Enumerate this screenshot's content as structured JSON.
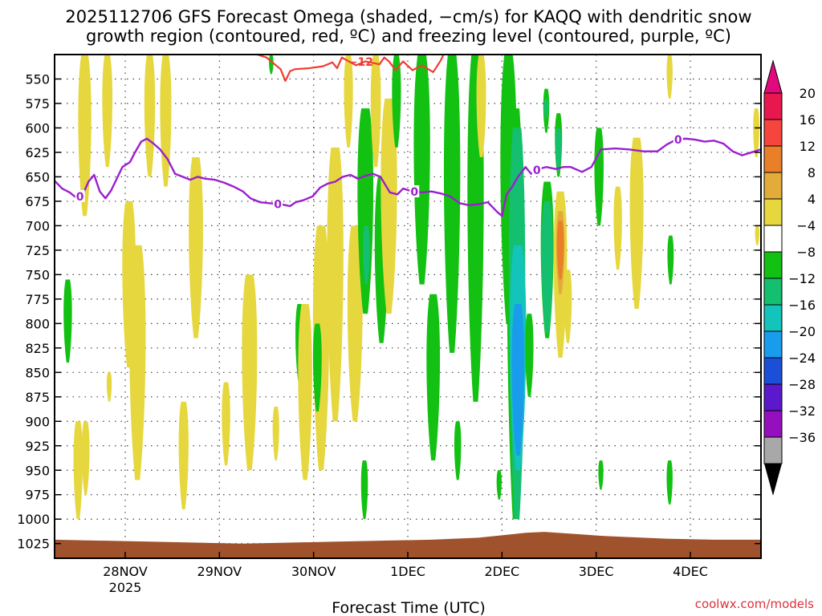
{
  "chart_data": {
    "type": "heatmap",
    "title_line1": "2025112706 GFS Forecast Omega (shaded, −cm/s) for KAQQ with dendritic snow",
    "title_line2": "growth region (contoured, red, ºC) and freezing level (contoured, purple, ºC)",
    "xlabel": "Forecast Time (UTC)",
    "credit": "coolwx.com/models",
    "x_unit": "days since 2025-11-27 06Z",
    "xlim": [
      0,
      7.5
    ],
    "x_ticks": [
      {
        "x": 0.75,
        "label": "28NOV",
        "sub": "2025"
      },
      {
        "x": 1.75,
        "label": "29NOV",
        "sub": ""
      },
      {
        "x": 2.75,
        "label": "30NOV",
        "sub": ""
      },
      {
        "x": 3.75,
        "label": "1DEC",
        "sub": ""
      },
      {
        "x": 4.75,
        "label": "2DEC",
        "sub": ""
      },
      {
        "x": 5.75,
        "label": "3DEC",
        "sub": ""
      },
      {
        "x": 6.75,
        "label": "4DEC",
        "sub": ""
      }
    ],
    "y_unit": "hPa",
    "ylim": [
      1040,
      525
    ],
    "y_ticks": [
      "550",
      "575",
      "600",
      "625",
      "650",
      "675",
      "700",
      "725",
      "750",
      "775",
      "800",
      "825",
      "850",
      "875",
      "900",
      "925",
      "950",
      "975",
      "1000",
      "1025"
    ],
    "colorbar": {
      "labels": [
        "20",
        "16",
        "12",
        "8",
        "4",
        "−4",
        "−8",
        "−12",
        "−16",
        "−20",
        "−24",
        "−28",
        "−32",
        "−36"
      ],
      "colors": [
        "#e8174e",
        "#f5453c",
        "#e97f29",
        "#e3ab3a",
        "#e6d73e",
        "#ffffff",
        "#12c112",
        "#15bf70",
        "#12c4b9",
        "#1a9cec",
        "#1c4fd8",
        "#5b18cc",
        "#950fbf",
        "#a8a8a8"
      ],
      "top_arrow": "#e0097d",
      "bottom_arrow": "#000000"
    },
    "omega_colors": {
      "pos_4_8": "#e6d73e",
      "pos_8_12": "#e3ab3a",
      "pos_12_16": "#e97f29",
      "neg_4_8": "#12c112",
      "neg_8_12": "#15bf70",
      "neg_12_16": "#12c4b9",
      "neg_16_20": "#1a9cec"
    },
    "omega_regions": [
      {
        "c": "pos_4_8",
        "x": 0.25,
        "p0": 1000,
        "p1": 900
      },
      {
        "c": "pos_4_8",
        "x": 0.32,
        "p0": 690,
        "p1": 525
      },
      {
        "c": "neg_4_8",
        "x": 0.14,
        "p0": 840,
        "p1": 755
      },
      {
        "c": "pos_4_8",
        "x": 0.33,
        "p0": 975,
        "p1": 900
      },
      {
        "c": "pos_4_8",
        "x": 0.56,
        "p0": 640,
        "p1": 525
      },
      {
        "c": "pos_4_8",
        "x": 0.58,
        "p0": 880,
        "p1": 850
      },
      {
        "c": "pos_4_8",
        "x": 0.79,
        "p0": 845,
        "p1": 675
      },
      {
        "c": "pos_4_8",
        "x": 0.88,
        "p0": 960,
        "p1": 720
      },
      {
        "c": "pos_4_8",
        "x": 1.01,
        "p0": 650,
        "p1": 525
      },
      {
        "c": "pos_4_8",
        "x": 1.18,
        "p0": 660,
        "p1": 525
      },
      {
        "c": "pos_4_8",
        "x": 1.37,
        "p0": 990,
        "p1": 880
      },
      {
        "c": "pos_4_8",
        "x": 1.5,
        "p0": 815,
        "p1": 630
      },
      {
        "c": "pos_4_8",
        "x": 1.82,
        "p0": 945,
        "p1": 860
      },
      {
        "c": "pos_4_8",
        "x": 2.07,
        "p0": 950,
        "p1": 750
      },
      {
        "c": "pos_4_8",
        "x": 2.35,
        "p0": 940,
        "p1": 885
      },
      {
        "c": "neg_4_8",
        "x": 2.3,
        "p0": 545,
        "p1": 525
      },
      {
        "c": "neg_4_8",
        "x": 2.6,
        "p0": 860,
        "p1": 780
      },
      {
        "c": "pos_4_8",
        "x": 2.66,
        "p0": 960,
        "p1": 780
      },
      {
        "c": "pos_4_8",
        "x": 2.83,
        "p0": 950,
        "p1": 700
      },
      {
        "c": "neg_4_8",
        "x": 2.79,
        "p0": 890,
        "p1": 800
      },
      {
        "c": "pos_4_8",
        "x": 2.98,
        "p0": 900,
        "p1": 620
      },
      {
        "c": "pos_4_8",
        "x": 3.12,
        "p0": 620,
        "p1": 525
      },
      {
        "c": "pos_4_8",
        "x": 3.19,
        "p0": 900,
        "p1": 700
      },
      {
        "c": "neg_4_8",
        "x": 3.29,
        "p0": 1000,
        "p1": 940
      },
      {
        "c": "neg_4_8",
        "x": 3.3,
        "p0": 790,
        "p1": 580
      },
      {
        "c": "neg_8_12",
        "x": 3.31,
        "p0": 760,
        "p1": 700
      },
      {
        "c": "pos_4_8",
        "x": 3.41,
        "p0": 640,
        "p1": 525
      },
      {
        "c": "neg_4_8",
        "x": 3.47,
        "p0": 820,
        "p1": 650
      },
      {
        "c": "pos_4_8",
        "x": 3.55,
        "p0": 790,
        "p1": 570
      },
      {
        "c": "neg_4_8",
        "x": 3.63,
        "p0": 620,
        "p1": 525
      },
      {
        "c": "neg_4_8",
        "x": 3.9,
        "p0": 760,
        "p1": 525
      },
      {
        "c": "neg_4_8",
        "x": 4.02,
        "p0": 940,
        "p1": 770
      },
      {
        "c": "neg_4_8",
        "x": 4.22,
        "p0": 830,
        "p1": 525
      },
      {
        "c": "neg_4_8",
        "x": 4.28,
        "p0": 960,
        "p1": 900
      },
      {
        "c": "neg_4_8",
        "x": 4.47,
        "p0": 880,
        "p1": 525
      },
      {
        "c": "pos_4_8",
        "x": 4.53,
        "p0": 630,
        "p1": 525
      },
      {
        "c": "neg_4_8",
        "x": 4.72,
        "p0": 980,
        "p1": 950
      },
      {
        "c": "neg_4_8",
        "x": 4.82,
        "p0": 800,
        "p1": 525
      },
      {
        "c": "neg_4_8",
        "x": 4.89,
        "p0": 1000,
        "p1": 580
      },
      {
        "c": "neg_8_12",
        "x": 4.91,
        "p0": 1000,
        "p1": 600
      },
      {
        "c": "neg_12_16",
        "x": 4.92,
        "p0": 950,
        "p1": 720
      },
      {
        "c": "neg_16_20",
        "x": 4.92,
        "p0": 935,
        "p1": 780
      },
      {
        "c": "neg_4_8",
        "x": 5.04,
        "p0": 875,
        "p1": 790
      },
      {
        "c": "neg_4_8",
        "x": 5.23,
        "p0": 815,
        "p1": 655
      },
      {
        "c": "neg_8_12",
        "x": 5.23,
        "p0": 810,
        "p1": 675
      },
      {
        "c": "neg_4_8",
        "x": 5.22,
        "p0": 605,
        "p1": 560
      },
      {
        "c": "neg_8_12",
        "x": 5.22,
        "p0": 590,
        "p1": 570
      },
      {
        "c": "neg_4_8",
        "x": 5.35,
        "p0": 650,
        "p1": 585
      },
      {
        "c": "neg_8_12",
        "x": 5.35,
        "p0": 645,
        "p1": 600
      },
      {
        "c": "pos_4_8",
        "x": 5.37,
        "p0": 835,
        "p1": 665
      },
      {
        "c": "pos_8_12",
        "x": 5.37,
        "p0": 770,
        "p1": 685
      },
      {
        "c": "pos_12_16",
        "x": 5.37,
        "p0": 755,
        "p1": 695
      },
      {
        "c": "pos_4_8",
        "x": 5.45,
        "p0": 820,
        "p1": 745
      },
      {
        "c": "neg_4_8",
        "x": 5.78,
        "p0": 700,
        "p1": 600
      },
      {
        "c": "neg_4_8",
        "x": 5.8,
        "p0": 970,
        "p1": 940
      },
      {
        "c": "pos_4_8",
        "x": 5.98,
        "p0": 745,
        "p1": 660
      },
      {
        "c": "pos_4_8",
        "x": 6.18,
        "p0": 785,
        "p1": 610
      },
      {
        "c": "neg_4_8",
        "x": 6.54,
        "p0": 760,
        "p1": 710
      },
      {
        "c": "neg_4_8",
        "x": 6.53,
        "p0": 985,
        "p1": 940
      },
      {
        "c": "pos_4_8",
        "x": 6.53,
        "p0": 570,
        "p1": 525
      },
      {
        "c": "pos_4_8",
        "x": 7.45,
        "p0": 630,
        "p1": 580
      },
      {
        "c": "pos_4_8",
        "x": 7.46,
        "p0": 720,
        "p1": 700
      }
    ],
    "surface": {
      "color": "#a0522d",
      "points": [
        [
          0,
          1021
        ],
        [
          1.0,
          1023
        ],
        [
          1.5,
          1024
        ],
        [
          2.0,
          1025
        ],
        [
          2.5,
          1024
        ],
        [
          3.0,
          1023
        ],
        [
          3.5,
          1022
        ],
        [
          4.0,
          1021
        ],
        [
          4.5,
          1019
        ],
        [
          4.8,
          1016
        ],
        [
          5.0,
          1014
        ],
        [
          5.2,
          1013
        ],
        [
          5.5,
          1015
        ],
        [
          5.8,
          1017
        ],
        [
          6.0,
          1018
        ],
        [
          6.5,
          1020
        ],
        [
          7.0,
          1021
        ],
        [
          7.5,
          1021
        ]
      ]
    },
    "freezing_level": {
      "color": "#9b1fcf",
      "label": "0",
      "label_x": [
        0.27,
        2.37,
        3.82,
        5.12,
        6.62
      ],
      "points": [
        [
          0,
          654
        ],
        [
          0.08,
          662
        ],
        [
          0.16,
          666
        ],
        [
          0.24,
          672
        ],
        [
          0.3,
          668
        ],
        [
          0.36,
          655
        ],
        [
          0.42,
          648
        ],
        [
          0.48,
          665
        ],
        [
          0.54,
          672
        ],
        [
          0.6,
          664
        ],
        [
          0.66,
          652
        ],
        [
          0.72,
          640
        ],
        [
          0.8,
          635
        ],
        [
          0.86,
          624
        ],
        [
          0.92,
          614
        ],
        [
          0.98,
          611
        ],
        [
          1.05,
          616
        ],
        [
          1.12,
          622
        ],
        [
          1.2,
          632
        ],
        [
          1.28,
          647
        ],
        [
          1.36,
          650
        ],
        [
          1.44,
          653
        ],
        [
          1.52,
          650
        ],
        [
          1.6,
          652
        ],
        [
          1.7,
          653
        ],
        [
          1.8,
          656
        ],
        [
          1.9,
          660
        ],
        [
          2.0,
          665
        ],
        [
          2.08,
          672
        ],
        [
          2.18,
          676
        ],
        [
          2.28,
          677
        ],
        [
          2.4,
          678
        ],
        [
          2.5,
          680
        ],
        [
          2.56,
          676
        ],
        [
          2.64,
          674
        ],
        [
          2.74,
          670
        ],
        [
          2.82,
          661
        ],
        [
          2.9,
          657
        ],
        [
          2.98,
          655
        ],
        [
          3.06,
          650
        ],
        [
          3.14,
          648
        ],
        [
          3.22,
          652
        ],
        [
          3.3,
          649
        ],
        [
          3.38,
          647
        ],
        [
          3.46,
          650
        ],
        [
          3.56,
          666
        ],
        [
          3.64,
          668
        ],
        [
          3.7,
          662
        ],
        [
          3.8,
          665
        ],
        [
          3.9,
          666
        ],
        [
          4.0,
          665
        ],
        [
          4.1,
          667
        ],
        [
          4.2,
          670
        ],
        [
          4.3,
          677
        ],
        [
          4.4,
          679
        ],
        [
          4.5,
          678
        ],
        [
          4.6,
          676
        ],
        [
          4.7,
          686
        ],
        [
          4.75,
          690
        ],
        [
          4.8,
          668
        ],
        [
          4.86,
          660
        ],
        [
          4.92,
          650
        ],
        [
          5.0,
          640
        ],
        [
          5.06,
          647
        ],
        [
          5.14,
          642
        ],
        [
          5.22,
          640
        ],
        [
          5.32,
          642
        ],
        [
          5.4,
          640
        ],
        [
          5.48,
          640
        ],
        [
          5.6,
          645
        ],
        [
          5.7,
          640
        ],
        [
          5.8,
          622
        ],
        [
          5.95,
          621
        ],
        [
          6.1,
          622
        ],
        [
          6.25,
          624
        ],
        [
          6.4,
          624
        ],
        [
          6.5,
          617
        ],
        [
          6.6,
          612
        ],
        [
          6.7,
          611
        ],
        [
          6.8,
          612
        ],
        [
          6.9,
          614
        ],
        [
          7.0,
          613
        ],
        [
          7.1,
          616
        ],
        [
          7.2,
          624
        ],
        [
          7.3,
          628
        ],
        [
          7.4,
          625
        ],
        [
          7.5,
          622
        ]
      ]
    },
    "dgz_contour": {
      "color": "#f03c32",
      "label": "−12",
      "label_x": 3.25,
      "points": [
        [
          2.15,
          525
        ],
        [
          2.25,
          528
        ],
        [
          2.4,
          540
        ],
        [
          2.45,
          552
        ],
        [
          2.5,
          542
        ],
        [
          2.55,
          540
        ],
        [
          2.7,
          539
        ],
        [
          2.85,
          537
        ],
        [
          2.95,
          533
        ],
        [
          3.0,
          539
        ],
        [
          3.05,
          528
        ],
        [
          3.2,
          536
        ],
        [
          3.3,
          532
        ],
        [
          3.45,
          535
        ],
        [
          3.5,
          528
        ],
        [
          3.55,
          532
        ],
        [
          3.62,
          541
        ],
        [
          3.7,
          532
        ],
        [
          3.8,
          541
        ],
        [
          3.9,
          536
        ],
        [
          4.02,
          543
        ],
        [
          4.1,
          531
        ],
        [
          4.13,
          525
        ]
      ]
    }
  }
}
